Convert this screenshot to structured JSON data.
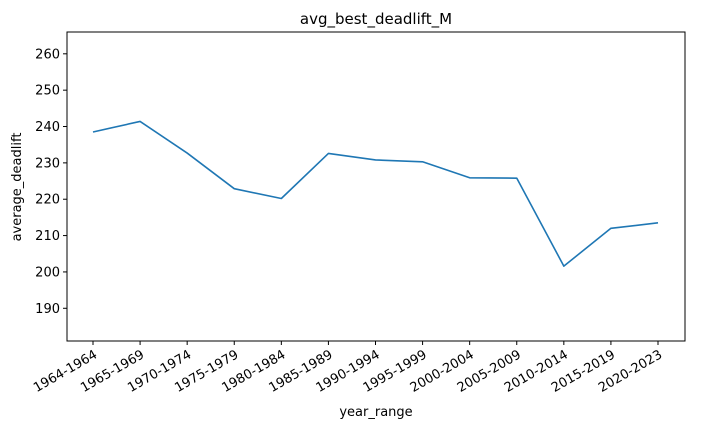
{
  "chart_data": {
    "type": "line",
    "title": "avg_best_deadlift_M",
    "xlabel": "year_range",
    "ylabel": "average_deadlift",
    "categories": [
      "1964-1964",
      "1965-1969",
      "1970-1974",
      "1975-1979",
      "1980-1984",
      "1985-1989",
      "1990-1994",
      "1995-1999",
      "2000-2004",
      "2005-2009",
      "2010-2014",
      "2015-2019",
      "2020-2023"
    ],
    "series": [
      {
        "values": [
          238.5,
          241.4,
          232.7,
          222.9,
          220.2,
          232.6,
          230.8,
          230.3,
          225.9,
          225.8,
          201.6,
          212.0,
          213.5
        ],
        "color": "#1f77b4"
      }
    ],
    "ylim": [
      181,
      266
    ],
    "yticks": [
      190,
      200,
      210,
      220,
      230,
      240,
      250,
      260
    ],
    "grid": false,
    "legend": "none"
  }
}
